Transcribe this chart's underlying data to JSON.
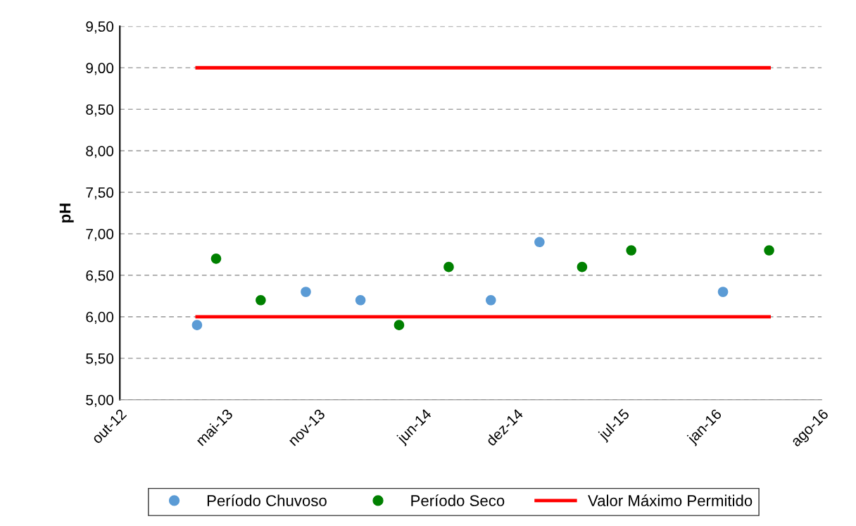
{
  "chart_data": {
    "type": "scatter",
    "ylabel": "pH",
    "xlim": [
      "2012-10-01",
      "2016-08-01"
    ],
    "xticks": [
      {
        "value": "2012-10-01",
        "label": "out-12"
      },
      {
        "value": "2013-05-01",
        "label": "mai-13"
      },
      {
        "value": "2013-11-01",
        "label": "nov-13"
      },
      {
        "value": "2014-06-01",
        "label": "jun-14"
      },
      {
        "value": "2014-12-01",
        "label": "dez-14"
      },
      {
        "value": "2015-07-01",
        "label": "jul-15"
      },
      {
        "value": "2016-01-01",
        "label": "jan-16"
      },
      {
        "value": "2016-08-01",
        "label": "ago-16"
      }
    ],
    "ylim": [
      5,
      9.5
    ],
    "yticks": [
      {
        "value": 5,
        "label": "5,00"
      },
      {
        "value": 5.5,
        "label": "5,50"
      },
      {
        "value": 6,
        "label": "6,00"
      },
      {
        "value": 6.5,
        "label": "6,50"
      },
      {
        "value": 7,
        "label": "7,00"
      },
      {
        "value": 7.5,
        "label": "7,50"
      },
      {
        "value": 8,
        "label": "8,00"
      },
      {
        "value": 8.5,
        "label": "8,50"
      },
      {
        "value": 9,
        "label": "9,00"
      },
      {
        "value": 9.5,
        "label": "9,50"
      }
    ],
    "grid": "y",
    "legend": "bottom",
    "marker": "circle",
    "series": [
      {
        "name": "Período Chuvoso",
        "color": "#5b9bd5",
        "x": [
          "2013-03-04",
          "2013-10-07",
          "2014-01-24",
          "2014-10-11",
          "2015-01-16",
          "2016-01-17"
        ],
        "values": [
          5.9,
          6.3,
          6.2,
          6.2,
          6.9,
          6.3
        ]
      },
      {
        "name": "Período Seco",
        "color": "#008000",
        "x": [
          "2013-04-11",
          "2013-07-09",
          "2014-04-11",
          "2014-07-19",
          "2015-04-11",
          "2015-07-18",
          "2016-04-18"
        ],
        "values": [
          6.7,
          6.2,
          5.9,
          6.6,
          6.6,
          6.8,
          6.8
        ]
      },
      {
        "name": "Valor Máximo Permitido",
        "type": "line",
        "marker": "none",
        "color": "#ff0000",
        "x": [
          "2013-03-04",
          "2016-04-18"
        ],
        "values": [
          9,
          9
        ]
      },
      {
        "type": "line",
        "marker": "none",
        "color": "#ff0000",
        "x": [
          "2013-03-04",
          "2016-04-18"
        ],
        "values": [
          6,
          6
        ]
      }
    ]
  }
}
